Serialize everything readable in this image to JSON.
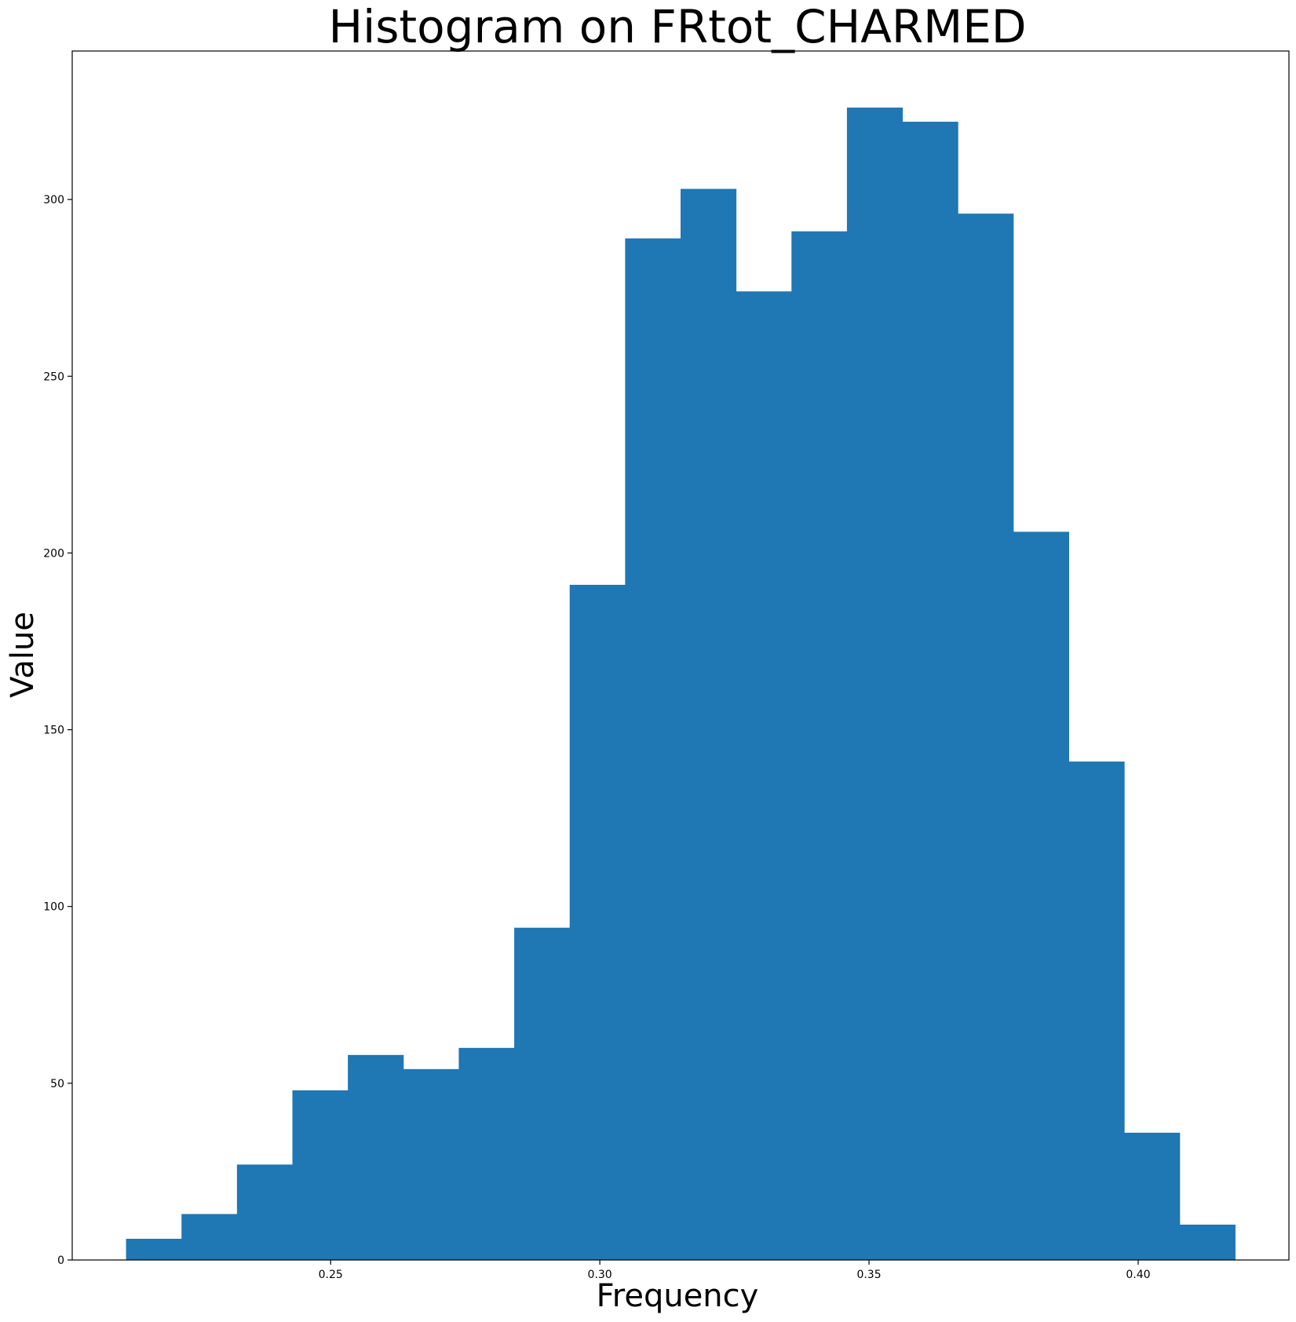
{
  "chart_data": {
    "type": "bar",
    "title": "Histogram on FRtot_CHARMED",
    "xlabel": "Frequency",
    "ylabel": "Value",
    "bin_edges": [
      0.212,
      0.2223,
      0.2326,
      0.2429,
      0.2532,
      0.2635,
      0.2738,
      0.2841,
      0.2944,
      0.3047,
      0.315,
      0.3253,
      0.3356,
      0.3459,
      0.3562,
      0.3665,
      0.3768,
      0.3871,
      0.3974,
      0.4077,
      0.418
    ],
    "values": [
      6,
      13,
      27,
      48,
      58,
      54,
      60,
      94,
      191,
      289,
      303,
      274,
      291,
      326,
      322,
      296,
      206,
      141,
      36,
      10
    ],
    "xlim": [
      0.202,
      0.428
    ],
    "ylim": [
      0,
      342
    ],
    "xticks": [
      {
        "value": 0.25,
        "label": "0.25"
      },
      {
        "value": 0.3,
        "label": "0.30"
      },
      {
        "value": 0.35,
        "label": "0.35"
      },
      {
        "value": 0.4,
        "label": "0.40"
      }
    ],
    "yticks": [
      {
        "value": 0,
        "label": "0"
      },
      {
        "value": 50,
        "label": "50"
      },
      {
        "value": 100,
        "label": "100"
      },
      {
        "value": 150,
        "label": "150"
      },
      {
        "value": 200,
        "label": "200"
      },
      {
        "value": 250,
        "label": "250"
      },
      {
        "value": 300,
        "label": "300"
      }
    ],
    "grid": false,
    "legend": "none",
    "bar_color": "#1f77b4"
  }
}
